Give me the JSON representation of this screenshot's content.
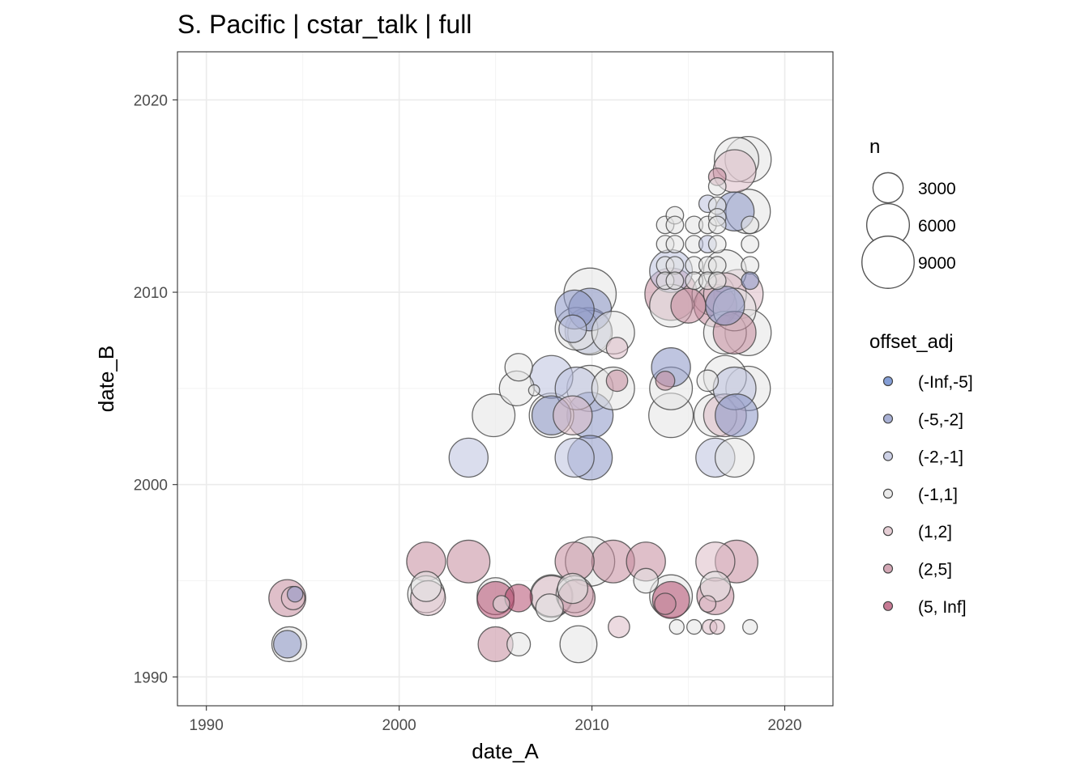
{
  "chart_data": {
    "type": "scatter",
    "title": "S. Pacific | cstar_talk | full",
    "xlabel": "date_A",
    "ylabel": "date_B",
    "xlim": [
      1988.5,
      2022.5
    ],
    "ylim": [
      1988.5,
      2022.5
    ],
    "x_ticks": [
      1990,
      2000,
      2010,
      2020
    ],
    "y_ticks": [
      1990,
      2000,
      2010,
      2020
    ],
    "grid": true,
    "legend_position": "right",
    "size_legend": {
      "title": "n",
      "entries": [
        3000,
        6000,
        9000
      ]
    },
    "color_legend": {
      "title": "offset_adj",
      "entries": [
        {
          "label": "(-Inf,-5]",
          "color": "#5b7ec8"
        },
        {
          "label": "(-5,-2]",
          "color": "#8b95c6"
        },
        {
          "label": "(-2,-1]",
          "color": "#bcc1de"
        },
        {
          "label": "(-1,1]",
          "color": "#e3e3e3"
        },
        {
          "label": "(1,2]",
          "color": "#dcbcc6"
        },
        {
          "label": "(2,5]",
          "color": "#c48a9c"
        },
        {
          "label": "(5, Inf]",
          "color": "#b44d70"
        }
      ]
    },
    "points": [
      {
        "x": 1994.2,
        "y": 1991.7,
        "n": 2500,
        "cat": "(-5,-2]"
      },
      {
        "x": 1994.3,
        "y": 1991.7,
        "n": 4000,
        "cat": "(-1,1]"
      },
      {
        "x": 1994.2,
        "y": 1994.1,
        "n": 4500,
        "cat": "(2,5]"
      },
      {
        "x": 1994.6,
        "y": 1994.3,
        "n": 800,
        "cat": "(-5,-2]"
      },
      {
        "x": 1994.5,
        "y": 1994.1,
        "n": 1800,
        "cat": "(1,2]"
      },
      {
        "x": 2001.4,
        "y": 1996.0,
        "n": 5000,
        "cat": "(2,5]"
      },
      {
        "x": 2001.4,
        "y": 1994.7,
        "n": 3000,
        "cat": "(-1,1]"
      },
      {
        "x": 2001.4,
        "y": 1994.3,
        "n": 4500,
        "cat": "(-1,1]"
      },
      {
        "x": 2001.5,
        "y": 1994.1,
        "n": 4000,
        "cat": "(1,2]"
      },
      {
        "x": 2003.6,
        "y": 1996.0,
        "n": 6000,
        "cat": "(2,5]"
      },
      {
        "x": 2003.6,
        "y": 2001.4,
        "n": 5000,
        "cat": "(-2,-1]"
      },
      {
        "x": 2004.9,
        "y": 2003.6,
        "n": 6000,
        "cat": "(-1,1]"
      },
      {
        "x": 2005.0,
        "y": 1994.2,
        "n": 4500,
        "cat": "(-1,1]"
      },
      {
        "x": 2005.0,
        "y": 1994.0,
        "n": 4500,
        "cat": "(5, Inf]"
      },
      {
        "x": 2005.0,
        "y": 1991.7,
        "n": 4000,
        "cat": "(2,5]"
      },
      {
        "x": 2005.3,
        "y": 1993.8,
        "n": 900,
        "cat": "(-1,1]"
      },
      {
        "x": 2006.2,
        "y": 2006.1,
        "n": 2500,
        "cat": "(-1,1]"
      },
      {
        "x": 2006.1,
        "y": 2005.0,
        "n": 4000,
        "cat": "(-1,1]"
      },
      {
        "x": 2006.2,
        "y": 1994.1,
        "n": 2500,
        "cat": "(5, Inf]"
      },
      {
        "x": 2006.2,
        "y": 1991.7,
        "n": 1800,
        "cat": "(-1,1]"
      },
      {
        "x": 2007.0,
        "y": 2004.9,
        "n": 400,
        "cat": "(-1,1]"
      },
      {
        "x": 2007.9,
        "y": 2005.6,
        "n": 6000,
        "cat": "(-2,-1]"
      },
      {
        "x": 2007.9,
        "y": 2003.6,
        "n": 5000,
        "cat": "(-5,-2]"
      },
      {
        "x": 2007.9,
        "y": 2003.6,
        "n": 6500,
        "cat": "(-1,1]"
      },
      {
        "x": 2007.9,
        "y": 1994.2,
        "n": 5500,
        "cat": "(1,2]"
      },
      {
        "x": 2007.9,
        "y": 1994.2,
        "n": 6000,
        "cat": "(-1,1]"
      },
      {
        "x": 2007.8,
        "y": 1993.6,
        "n": 2500,
        "cat": "(-1,1]"
      },
      {
        "x": 2009.1,
        "y": 2009.1,
        "n": 5000,
        "cat": "(-5,-2]"
      },
      {
        "x": 2009.0,
        "y": 2008.1,
        "n": 2500,
        "cat": "(-2,-1]"
      },
      {
        "x": 2009.2,
        "y": 2008.1,
        "n": 6000,
        "cat": "(-1,1]"
      },
      {
        "x": 2009.2,
        "y": 2005.0,
        "n": 6000,
        "cat": "(-2,-1]"
      },
      {
        "x": 2009.0,
        "y": 2003.6,
        "n": 5000,
        "cat": "(1,2]"
      },
      {
        "x": 2009.1,
        "y": 2001.4,
        "n": 5000,
        "cat": "(-2,-1]"
      },
      {
        "x": 2009.1,
        "y": 1996.0,
        "n": 5000,
        "cat": "(2,5]"
      },
      {
        "x": 2009.0,
        "y": 1994.6,
        "n": 3000,
        "cat": "(-1,1]"
      },
      {
        "x": 2009.1,
        "y": 1994.3,
        "n": 4500,
        "cat": "(-1,1]"
      },
      {
        "x": 2009.2,
        "y": 1994.1,
        "n": 4500,
        "cat": "(2,5]"
      },
      {
        "x": 2009.3,
        "y": 1991.7,
        "n": 4500,
        "cat": "(-1,1]"
      },
      {
        "x": 2009.9,
        "y": 2009.9,
        "n": 9000,
        "cat": "(-1,1]"
      },
      {
        "x": 2009.9,
        "y": 2009.1,
        "n": 6000,
        "cat": "(-5,-2]"
      },
      {
        "x": 2009.8,
        "y": 2008.0,
        "n": 7000,
        "cat": "(-5,-2]"
      },
      {
        "x": 2009.9,
        "y": 2007.9,
        "n": 6500,
        "cat": "(-1,1]"
      },
      {
        "x": 2009.9,
        "y": 2005.0,
        "n": 7000,
        "cat": "(-1,1]"
      },
      {
        "x": 2009.9,
        "y": 2003.6,
        "n": 7000,
        "cat": "(-5,-2]"
      },
      {
        "x": 2009.9,
        "y": 2001.4,
        "n": 6500,
        "cat": "(-5,-2]"
      },
      {
        "x": 2009.9,
        "y": 1996.0,
        "n": 8000,
        "cat": "(-1,1]"
      },
      {
        "x": 2011.1,
        "y": 2007.9,
        "n": 6000,
        "cat": "(-1,1]"
      },
      {
        "x": 2011.1,
        "y": 2005.0,
        "n": 6000,
        "cat": "(-1,1]"
      },
      {
        "x": 2011.3,
        "y": 2007.1,
        "n": 1500,
        "cat": "(1,2]"
      },
      {
        "x": 2011.3,
        "y": 2005.4,
        "n": 1500,
        "cat": "(2,5]"
      },
      {
        "x": 2011.1,
        "y": 1996.0,
        "n": 6000,
        "cat": "(2,5]"
      },
      {
        "x": 2011.4,
        "y": 1992.6,
        "n": 1500,
        "cat": "(1,2]"
      },
      {
        "x": 2012.8,
        "y": 1996.0,
        "n": 5000,
        "cat": "(2,5]"
      },
      {
        "x": 2012.8,
        "y": 1995.0,
        "n": 2000,
        "cat": "(-1,1]"
      },
      {
        "x": 2013.8,
        "y": 2013.5,
        "n": 1000,
        "cat": "(-1,1]"
      },
      {
        "x": 2013.8,
        "y": 2012.5,
        "n": 1000,
        "cat": "(-1,1]"
      },
      {
        "x": 2013.8,
        "y": 2011.4,
        "n": 1000,
        "cat": "(-1,1]"
      },
      {
        "x": 2013.8,
        "y": 2010.6,
        "n": 1000,
        "cat": "(-1,1]"
      },
      {
        "x": 2014.1,
        "y": 2011.1,
        "n": 6000,
        "cat": "(-2,-1]"
      },
      {
        "x": 2014.1,
        "y": 2009.9,
        "n": 9000,
        "cat": "(2,5]"
      },
      {
        "x": 2014.1,
        "y": 2009.3,
        "n": 6000,
        "cat": "(-1,1]"
      },
      {
        "x": 2014.1,
        "y": 2006.1,
        "n": 5000,
        "cat": "(-5,-2]"
      },
      {
        "x": 2014.1,
        "y": 2005.0,
        "n": 6000,
        "cat": "(-1,1]"
      },
      {
        "x": 2014.1,
        "y": 2003.6,
        "n": 6500,
        "cat": "(-1,1]"
      },
      {
        "x": 2013.8,
        "y": 2005.4,
        "n": 1200,
        "cat": "(2,5]"
      },
      {
        "x": 2014.1,
        "y": 1994.2,
        "n": 6000,
        "cat": "(-1,1]"
      },
      {
        "x": 2014.1,
        "y": 1994.0,
        "n": 4500,
        "cat": "(5, Inf]"
      },
      {
        "x": 2013.8,
        "y": 1993.8,
        "n": 1500,
        "cat": "(2,5]"
      },
      {
        "x": 2014.3,
        "y": 2014.0,
        "n": 1000,
        "cat": "(-1,1]"
      },
      {
        "x": 2014.3,
        "y": 2013.5,
        "n": 1000,
        "cat": "(-1,1]"
      },
      {
        "x": 2014.3,
        "y": 2012.5,
        "n": 1000,
        "cat": "(-1,1]"
      },
      {
        "x": 2014.3,
        "y": 2011.4,
        "n": 1000,
        "cat": "(-1,1]"
      },
      {
        "x": 2014.3,
        "y": 2010.6,
        "n": 1000,
        "cat": "(-1,1]"
      },
      {
        "x": 2014.4,
        "y": 1992.6,
        "n": 700,
        "cat": "(-1,1]"
      },
      {
        "x": 2015.0,
        "y": 2009.3,
        "n": 4000,
        "cat": "(2,5]"
      },
      {
        "x": 2015.3,
        "y": 2013.5,
        "n": 1000,
        "cat": "(-1,1]"
      },
      {
        "x": 2015.3,
        "y": 2012.5,
        "n": 1000,
        "cat": "(-1,1]"
      },
      {
        "x": 2015.3,
        "y": 2011.4,
        "n": 1000,
        "cat": "(-1,1]"
      },
      {
        "x": 2015.3,
        "y": 2010.6,
        "n": 1000,
        "cat": "(-1,1]"
      },
      {
        "x": 2015.3,
        "y": 1992.6,
        "n": 700,
        "cat": "(-1,1]"
      },
      {
        "x": 2016.0,
        "y": 2014.6,
        "n": 1000,
        "cat": "(-2,-1]"
      },
      {
        "x": 2016.0,
        "y": 2013.5,
        "n": 1000,
        "cat": "(-1,1]"
      },
      {
        "x": 2016.0,
        "y": 2012.5,
        "n": 1000,
        "cat": "(-2,-1]"
      },
      {
        "x": 2016.0,
        "y": 2011.4,
        "n": 1000,
        "cat": "(-1,1]"
      },
      {
        "x": 2016.0,
        "y": 2010.6,
        "n": 1000,
        "cat": "(-1,1]"
      },
      {
        "x": 2016.3,
        "y": 2009.9,
        "n": 6000,
        "cat": "(-1,1]"
      },
      {
        "x": 2016.4,
        "y": 2009.3,
        "n": 6000,
        "cat": "(2,5]"
      },
      {
        "x": 2016.0,
        "y": 2005.4,
        "n": 1500,
        "cat": "(-1,1]"
      },
      {
        "x": 2016.4,
        "y": 2003.6,
        "n": 6000,
        "cat": "(-1,1]"
      },
      {
        "x": 2016.4,
        "y": 2001.4,
        "n": 5000,
        "cat": "(-2,-1]"
      },
      {
        "x": 2016.4,
        "y": 1996.0,
        "n": 5000,
        "cat": "(1,2]"
      },
      {
        "x": 2016.4,
        "y": 1994.7,
        "n": 3000,
        "cat": "(-1,1]"
      },
      {
        "x": 2016.4,
        "y": 1994.2,
        "n": 4500,
        "cat": "(2,5]"
      },
      {
        "x": 2016.0,
        "y": 1993.8,
        "n": 900,
        "cat": "(1,2]"
      },
      {
        "x": 2016.1,
        "y": 1992.6,
        "n": 700,
        "cat": "(1,2]"
      },
      {
        "x": 2016.5,
        "y": 2016.0,
        "n": 1000,
        "cat": "(2,5]"
      },
      {
        "x": 2016.5,
        "y": 2015.5,
        "n": 1000,
        "cat": "(-1,1]"
      },
      {
        "x": 2016.5,
        "y": 2014.5,
        "n": 1000,
        "cat": "(-1,1]"
      },
      {
        "x": 2016.5,
        "y": 2013.9,
        "n": 1000,
        "cat": "(-1,1]"
      },
      {
        "x": 2016.5,
        "y": 2013.5,
        "n": 1000,
        "cat": "(-1,1]"
      },
      {
        "x": 2016.5,
        "y": 2012.5,
        "n": 1000,
        "cat": "(-1,1]"
      },
      {
        "x": 2016.5,
        "y": 2011.4,
        "n": 1000,
        "cat": "(-1,1]"
      },
      {
        "x": 2016.5,
        "y": 2010.6,
        "n": 1000,
        "cat": "(-1,1]"
      },
      {
        "x": 2016.5,
        "y": 1992.6,
        "n": 700,
        "cat": "(1,2]"
      },
      {
        "x": 2016.9,
        "y": 2011.1,
        "n": 6000,
        "cat": "(-1,1]"
      },
      {
        "x": 2016.9,
        "y": 2009.9,
        "n": 6000,
        "cat": "(1,2]"
      },
      {
        "x": 2016.9,
        "y": 2009.3,
        "n": 5000,
        "cat": "(-5,-2]"
      },
      {
        "x": 2016.9,
        "y": 2007.9,
        "n": 6000,
        "cat": "(-1,1]"
      },
      {
        "x": 2016.9,
        "y": 2005.6,
        "n": 6000,
        "cat": "(-1,1]"
      },
      {
        "x": 2016.9,
        "y": 2003.6,
        "n": 6000,
        "cat": "(1,2]"
      },
      {
        "x": 2017.4,
        "y": 2016.3,
        "n": 6000,
        "cat": "(1,2]"
      },
      {
        "x": 2017.5,
        "y": 2016.9,
        "n": 6500,
        "cat": "(-1,1]"
      },
      {
        "x": 2017.4,
        "y": 2014.2,
        "n": 5000,
        "cat": "(-5,-2]"
      },
      {
        "x": 2017.6,
        "y": 2009.9,
        "n": 8000,
        "cat": "(1,2]"
      },
      {
        "x": 2017.4,
        "y": 2009.1,
        "n": 6000,
        "cat": "(-1,1]"
      },
      {
        "x": 2017.4,
        "y": 2007.9,
        "n": 6000,
        "cat": "(2,5]"
      },
      {
        "x": 2017.4,
        "y": 2005.0,
        "n": 6000,
        "cat": "(-2,-1]"
      },
      {
        "x": 2017.5,
        "y": 2003.6,
        "n": 6000,
        "cat": "(-5,-2]"
      },
      {
        "x": 2017.4,
        "y": 2001.4,
        "n": 5000,
        "cat": "(-1,1]"
      },
      {
        "x": 2017.5,
        "y": 1996.0,
        "n": 6000,
        "cat": "(2,5]"
      },
      {
        "x": 2018.1,
        "y": 2016.9,
        "n": 7000,
        "cat": "(-1,1]"
      },
      {
        "x": 2018.1,
        "y": 2014.2,
        "n": 6500,
        "cat": "(-1,1]"
      },
      {
        "x": 2018.2,
        "y": 2013.5,
        "n": 1000,
        "cat": "(-1,1]"
      },
      {
        "x": 2018.2,
        "y": 2012.5,
        "n": 1000,
        "cat": "(-1,1]"
      },
      {
        "x": 2018.2,
        "y": 2011.4,
        "n": 1000,
        "cat": "(-1,1]"
      },
      {
        "x": 2018.2,
        "y": 2010.6,
        "n": 1000,
        "cat": "(-5,-2]"
      },
      {
        "x": 2018.1,
        "y": 2007.9,
        "n": 7000,
        "cat": "(-1,1]"
      },
      {
        "x": 2018.1,
        "y": 2005.0,
        "n": 6500,
        "cat": "(-1,1]"
      },
      {
        "x": 2018.2,
        "y": 1992.6,
        "n": 700,
        "cat": "(-1,1]"
      }
    ]
  }
}
